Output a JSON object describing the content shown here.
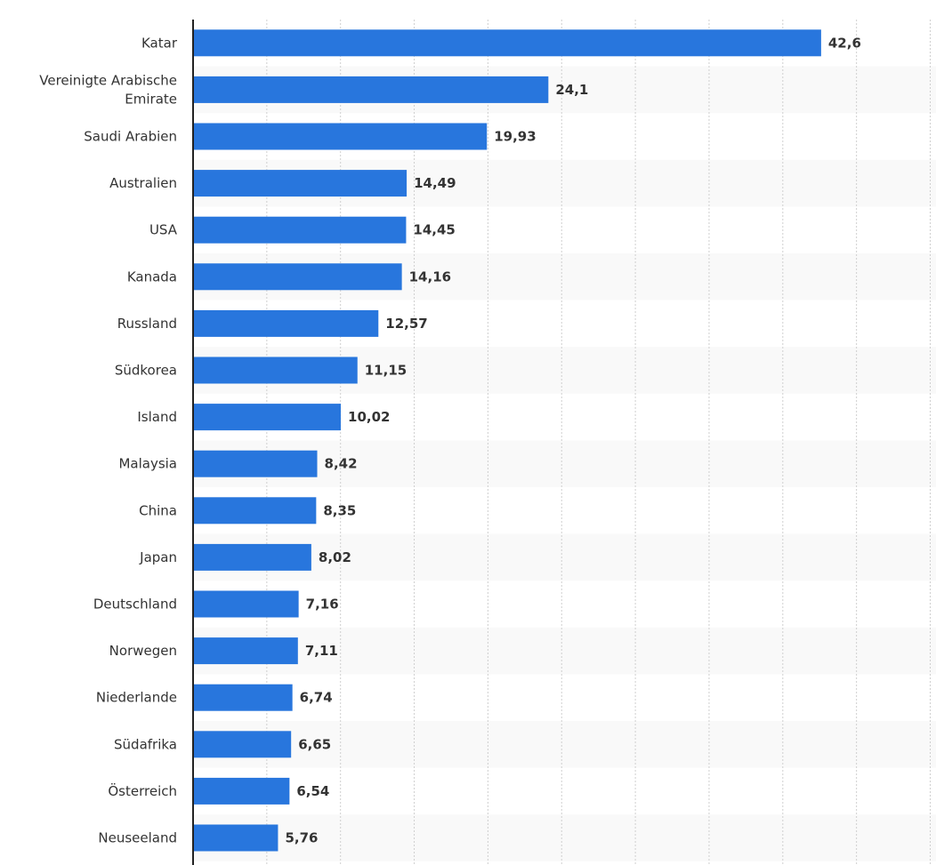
{
  "chart_data": {
    "type": "bar",
    "orientation": "horizontal",
    "categories": [
      "Katar",
      "Vereinigte Arabische Emirate",
      "Saudi Arabien",
      "Australien",
      "USA",
      "Kanada",
      "Russland",
      "Südkorea",
      "Island",
      "Malaysia",
      "China",
      "Japan",
      "Deutschland",
      "Norwegen",
      "Niederlande",
      "Südafrika",
      "Österreich",
      "Neuseeland"
    ],
    "category_lines": [
      [
        "Katar"
      ],
      [
        "Vereinigte Arabische",
        "Emirate"
      ],
      [
        "Saudi Arabien"
      ],
      [
        "Australien"
      ],
      [
        "USA"
      ],
      [
        "Kanada"
      ],
      [
        "Russland"
      ],
      [
        "Südkorea"
      ],
      [
        "Island"
      ],
      [
        "Malaysia"
      ],
      [
        "China"
      ],
      [
        "Japan"
      ],
      [
        "Deutschland"
      ],
      [
        "Norwegen"
      ],
      [
        "Niederlande"
      ],
      [
        "Südafrika"
      ],
      [
        "Österreich"
      ],
      [
        "Neuseeland"
      ]
    ],
    "values": [
      42.6,
      24.1,
      19.93,
      14.49,
      14.45,
      14.16,
      12.57,
      11.15,
      10.02,
      8.42,
      8.35,
      8.02,
      7.16,
      7.11,
      6.74,
      6.65,
      6.54,
      5.76
    ],
    "value_labels": [
      "42,6",
      "24,1",
      "19,93",
      "14,49",
      "14,45",
      "14,16",
      "12,57",
      "11,15",
      "10,02",
      "8,42",
      "8,35",
      "8,02",
      "7,16",
      "7,11",
      "6,74",
      "6,65",
      "6,54",
      "5,76"
    ],
    "xlim": [
      0,
      50
    ],
    "grid_step": 5,
    "grid": true,
    "bar_color": "#2876dd",
    "stripe_color": "#f9f9f9",
    "title": "",
    "xlabel": "",
    "ylabel": ""
  }
}
